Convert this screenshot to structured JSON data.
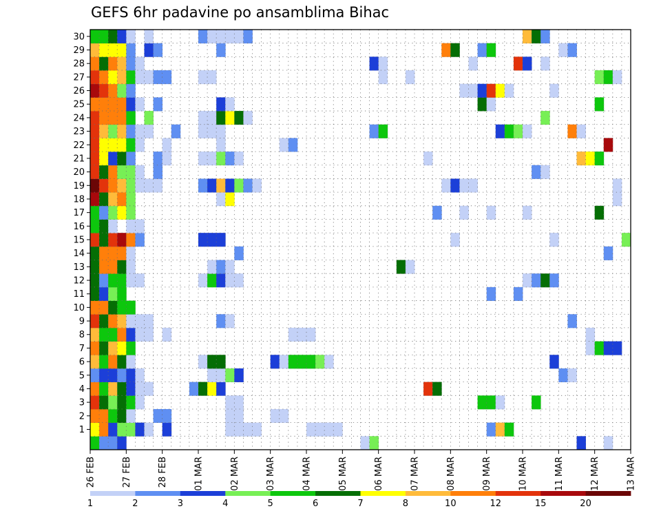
{
  "page": {
    "title": "GEFS 6hr padavine po ansamblima Bihac"
  },
  "chart_data": {
    "type": "heatmap",
    "title": "GEFS 6hr padavine po ansamblima Bihac",
    "xlabel": "",
    "ylabel": "",
    "x_tick_labels": [
      "26 FEB",
      "27 FEB",
      "28 FEB",
      "01 MAR",
      "02 MAR",
      "03 MAR",
      "04 MAR",
      "05 MAR",
      "06 MAR",
      "07 MAR",
      "08 MAR",
      "09 MAR",
      "10 MAR",
      "11 MAR",
      "12 MAR",
      "13 MAR"
    ],
    "y_tick_labels": [
      "1",
      "2",
      "3",
      "4",
      "5",
      "6",
      "7",
      "8",
      "9",
      "10",
      "11",
      "12",
      "13",
      "14",
      "15",
      "16",
      "17",
      "18",
      "19",
      "20",
      "21",
      "22",
      "23",
      "24",
      "25",
      "26",
      "27",
      "28",
      "29",
      "30"
    ],
    "n_steps": 60,
    "n_members": 31,
    "grid": "dotted",
    "colorbar": {
      "levels": [
        "1",
        "2",
        "3",
        "4",
        "5",
        "6",
        "7",
        "8",
        "10",
        "12",
        "15",
        "20"
      ],
      "colors": [
        "#c3d1f7",
        "#5f8ff2",
        "#1c3fd8",
        "#77ef55",
        "#0dc70d",
        "#056e05",
        "#ffff00",
        "#ffbb3a",
        "#ff7f0a",
        "#e3330b",
        "#a8090c",
        "#6b0606"
      ]
    },
    "cells": [
      [
        0,
        0,
        5
      ],
      [
        1,
        0,
        2
      ],
      [
        2,
        0,
        2
      ],
      [
        3,
        0,
        3
      ],
      [
        30,
        0,
        1
      ],
      [
        31,
        0,
        4
      ],
      [
        54,
        0,
        3
      ],
      [
        57,
        0,
        1
      ],
      [
        0,
        1,
        7
      ],
      [
        1,
        1,
        9
      ],
      [
        2,
        1,
        3
      ],
      [
        3,
        1,
        4
      ],
      [
        4,
        1,
        4
      ],
      [
        5,
        1,
        3
      ],
      [
        6,
        1,
        1
      ],
      [
        8,
        1,
        3
      ],
      [
        15,
        1,
        1
      ],
      [
        16,
        1,
        1
      ],
      [
        17,
        1,
        1
      ],
      [
        18,
        1,
        1
      ],
      [
        24,
        1,
        1
      ],
      [
        25,
        1,
        1
      ],
      [
        26,
        1,
        1
      ],
      [
        27,
        1,
        1
      ],
      [
        44,
        1,
        2
      ],
      [
        45,
        1,
        8
      ],
      [
        46,
        1,
        5
      ],
      [
        0,
        2,
        9
      ],
      [
        1,
        2,
        9
      ],
      [
        2,
        2,
        5
      ],
      [
        3,
        2,
        6
      ],
      [
        4,
        2,
        1
      ],
      [
        7,
        2,
        2
      ],
      [
        8,
        2,
        2
      ],
      [
        15,
        2,
        1
      ],
      [
        16,
        2,
        1
      ],
      [
        20,
        2,
        1
      ],
      [
        21,
        2,
        1
      ],
      [
        0,
        3,
        10
      ],
      [
        1,
        3,
        6
      ],
      [
        2,
        3,
        4
      ],
      [
        3,
        3,
        6
      ],
      [
        4,
        3,
        5
      ],
      [
        5,
        3,
        1
      ],
      [
        15,
        3,
        1
      ],
      [
        16,
        3,
        1
      ],
      [
        43,
        3,
        5
      ],
      [
        44,
        3,
        5
      ],
      [
        45,
        3,
        1
      ],
      [
        49,
        3,
        5
      ],
      [
        0,
        4,
        9
      ],
      [
        1,
        4,
        5
      ],
      [
        2,
        4,
        8
      ],
      [
        3,
        4,
        6
      ],
      [
        4,
        4,
        3
      ],
      [
        5,
        4,
        1
      ],
      [
        6,
        4,
        1
      ],
      [
        11,
        4,
        2
      ],
      [
        12,
        4,
        6
      ],
      [
        13,
        4,
        7
      ],
      [
        14,
        4,
        3
      ],
      [
        37,
        4,
        10
      ],
      [
        38,
        4,
        6
      ],
      [
        0,
        5,
        2
      ],
      [
        1,
        5,
        3
      ],
      [
        2,
        5,
        3
      ],
      [
        3,
        5,
        2
      ],
      [
        4,
        5,
        3
      ],
      [
        5,
        5,
        1
      ],
      [
        13,
        5,
        1
      ],
      [
        14,
        5,
        1
      ],
      [
        15,
        5,
        4
      ],
      [
        16,
        5,
        3
      ],
      [
        52,
        5,
        2
      ],
      [
        53,
        5,
        1
      ],
      [
        0,
        6,
        8
      ],
      [
        1,
        6,
        5
      ],
      [
        2,
        6,
        9
      ],
      [
        3,
        6,
        6
      ],
      [
        4,
        6,
        1
      ],
      [
        12,
        6,
        1
      ],
      [
        13,
        6,
        6
      ],
      [
        14,
        6,
        6
      ],
      [
        20,
        6,
        3
      ],
      [
        21,
        6,
        1
      ],
      [
        22,
        6,
        5
      ],
      [
        23,
        6,
        5
      ],
      [
        24,
        6,
        5
      ],
      [
        25,
        6,
        4
      ],
      [
        26,
        6,
        1
      ],
      [
        51,
        6,
        3
      ],
      [
        0,
        7,
        9
      ],
      [
        1,
        7,
        6
      ],
      [
        2,
        7,
        8
      ],
      [
        3,
        7,
        7
      ],
      [
        4,
        7,
        5
      ],
      [
        55,
        7,
        1
      ],
      [
        56,
        7,
        5
      ],
      [
        57,
        7,
        3
      ],
      [
        58,
        7,
        3
      ],
      [
        0,
        8,
        8
      ],
      [
        1,
        8,
        5
      ],
      [
        2,
        8,
        5
      ],
      [
        3,
        8,
        9
      ],
      [
        4,
        8,
        3
      ],
      [
        5,
        8,
        1
      ],
      [
        6,
        8,
        1
      ],
      [
        8,
        8,
        1
      ],
      [
        22,
        8,
        1
      ],
      [
        23,
        8,
        1
      ],
      [
        24,
        8,
        1
      ],
      [
        55,
        8,
        1
      ],
      [
        0,
        9,
        10
      ],
      [
        1,
        9,
        6
      ],
      [
        2,
        9,
        9
      ],
      [
        3,
        9,
        8
      ],
      [
        4,
        9,
        1
      ],
      [
        5,
        9,
        1
      ],
      [
        6,
        9,
        1
      ],
      [
        14,
        9,
        2
      ],
      [
        15,
        9,
        1
      ],
      [
        53,
        9,
        2
      ],
      [
        0,
        10,
        9
      ],
      [
        1,
        10,
        9
      ],
      [
        2,
        10,
        6
      ],
      [
        3,
        10,
        5
      ],
      [
        4,
        10,
        5
      ],
      [
        0,
        11,
        6
      ],
      [
        1,
        11,
        3
      ],
      [
        2,
        11,
        4
      ],
      [
        3,
        11,
        5
      ],
      [
        44,
        11,
        2
      ],
      [
        47,
        11,
        2
      ],
      [
        0,
        12,
        6
      ],
      [
        1,
        12,
        2
      ],
      [
        2,
        12,
        5
      ],
      [
        3,
        12,
        5
      ],
      [
        4,
        12,
        1
      ],
      [
        5,
        12,
        1
      ],
      [
        12,
        12,
        1
      ],
      [
        13,
        12,
        5
      ],
      [
        14,
        12,
        3
      ],
      [
        15,
        12,
        1
      ],
      [
        16,
        12,
        1
      ],
      [
        48,
        12,
        1
      ],
      [
        49,
        12,
        2
      ],
      [
        50,
        12,
        6
      ],
      [
        51,
        12,
        2
      ],
      [
        0,
        13,
        6
      ],
      [
        1,
        13,
        9
      ],
      [
        2,
        13,
        9
      ],
      [
        3,
        13,
        6
      ],
      [
        4,
        13,
        1
      ],
      [
        13,
        13,
        1
      ],
      [
        14,
        13,
        2
      ],
      [
        15,
        13,
        1
      ],
      [
        34,
        13,
        6
      ],
      [
        35,
        13,
        1
      ],
      [
        0,
        14,
        6
      ],
      [
        1,
        14,
        9
      ],
      [
        2,
        14,
        9
      ],
      [
        3,
        14,
        9
      ],
      [
        4,
        14,
        1
      ],
      [
        16,
        14,
        2
      ],
      [
        57,
        14,
        2
      ],
      [
        0,
        15,
        10
      ],
      [
        1,
        15,
        6
      ],
      [
        2,
        15,
        10
      ],
      [
        3,
        15,
        11
      ],
      [
        4,
        15,
        9
      ],
      [
        5,
        15,
        2
      ],
      [
        12,
        15,
        3
      ],
      [
        13,
        15,
        3
      ],
      [
        14,
        15,
        3
      ],
      [
        40,
        15,
        1
      ],
      [
        51,
        15,
        1
      ],
      [
        59,
        15,
        4
      ],
      [
        0,
        16,
        5
      ],
      [
        1,
        16,
        6
      ],
      [
        2,
        16,
        1
      ],
      [
        4,
        16,
        1
      ],
      [
        5,
        16,
        1
      ],
      [
        0,
        17,
        5
      ],
      [
        1,
        17,
        2
      ],
      [
        2,
        17,
        4
      ],
      [
        3,
        17,
        7
      ],
      [
        4,
        17,
        4
      ],
      [
        38,
        17,
        2
      ],
      [
        41,
        17,
        1
      ],
      [
        44,
        17,
        1
      ],
      [
        48,
        17,
        1
      ],
      [
        56,
        17,
        6
      ],
      [
        0,
        18,
        11
      ],
      [
        1,
        18,
        6
      ],
      [
        2,
        18,
        8
      ],
      [
        3,
        18,
        9
      ],
      [
        4,
        18,
        4
      ],
      [
        14,
        18,
        1
      ],
      [
        15,
        18,
        7
      ],
      [
        58,
        18,
        1
      ],
      [
        0,
        19,
        12
      ],
      [
        1,
        19,
        10
      ],
      [
        2,
        19,
        9
      ],
      [
        3,
        19,
        8
      ],
      [
        4,
        19,
        4
      ],
      [
        5,
        19,
        1
      ],
      [
        6,
        19,
        1
      ],
      [
        7,
        19,
        1
      ],
      [
        12,
        19,
        2
      ],
      [
        13,
        19,
        3
      ],
      [
        14,
        19,
        8
      ],
      [
        15,
        19,
        3
      ],
      [
        16,
        19,
        4
      ],
      [
        17,
        19,
        2
      ],
      [
        18,
        19,
        1
      ],
      [
        39,
        19,
        1
      ],
      [
        40,
        19,
        3
      ],
      [
        41,
        19,
        1
      ],
      [
        42,
        19,
        1
      ],
      [
        58,
        19,
        1
      ],
      [
        0,
        20,
        10
      ],
      [
        1,
        20,
        6
      ],
      [
        2,
        20,
        9
      ],
      [
        3,
        20,
        4
      ],
      [
        4,
        20,
        4
      ],
      [
        5,
        20,
        1
      ],
      [
        7,
        20,
        2
      ],
      [
        49,
        20,
        2
      ],
      [
        50,
        20,
        1
      ],
      [
        0,
        21,
        10
      ],
      [
        1,
        21,
        7
      ],
      [
        2,
        21,
        3
      ],
      [
        3,
        21,
        6
      ],
      [
        4,
        21,
        2
      ],
      [
        7,
        21,
        2
      ],
      [
        8,
        21,
        1
      ],
      [
        12,
        21,
        1
      ],
      [
        13,
        21,
        1
      ],
      [
        14,
        21,
        4
      ],
      [
        15,
        21,
        2
      ],
      [
        16,
        21,
        1
      ],
      [
        37,
        21,
        1
      ],
      [
        54,
        21,
        8
      ],
      [
        55,
        21,
        7
      ],
      [
        56,
        21,
        5
      ],
      [
        0,
        22,
        10
      ],
      [
        1,
        22,
        7
      ],
      [
        2,
        22,
        7
      ],
      [
        3,
        22,
        7
      ],
      [
        4,
        22,
        5
      ],
      [
        5,
        22,
        1
      ],
      [
        8,
        22,
        1
      ],
      [
        14,
        22,
        1
      ],
      [
        21,
        22,
        1
      ],
      [
        22,
        22,
        2
      ],
      [
        57,
        22,
        11
      ],
      [
        0,
        23,
        10
      ],
      [
        1,
        23,
        8
      ],
      [
        2,
        23,
        4
      ],
      [
        3,
        23,
        8
      ],
      [
        4,
        23,
        2
      ],
      [
        5,
        23,
        1
      ],
      [
        6,
        23,
        1
      ],
      [
        9,
        23,
        2
      ],
      [
        12,
        23,
        1
      ],
      [
        13,
        23,
        1
      ],
      [
        14,
        23,
        1
      ],
      [
        31,
        23,
        2
      ],
      [
        32,
        23,
        5
      ],
      [
        45,
        23,
        3
      ],
      [
        46,
        23,
        5
      ],
      [
        47,
        23,
        4
      ],
      [
        48,
        23,
        1
      ],
      [
        53,
        23,
        9
      ],
      [
        54,
        23,
        1
      ],
      [
        0,
        24,
        10
      ],
      [
        1,
        24,
        9
      ],
      [
        2,
        24,
        9
      ],
      [
        3,
        24,
        9
      ],
      [
        4,
        24,
        5
      ],
      [
        6,
        24,
        4
      ],
      [
        12,
        24,
        1
      ],
      [
        13,
        24,
        1
      ],
      [
        14,
        24,
        6
      ],
      [
        15,
        24,
        7
      ],
      [
        16,
        24,
        6
      ],
      [
        17,
        24,
        1
      ],
      [
        50,
        24,
        4
      ],
      [
        0,
        25,
        9
      ],
      [
        1,
        25,
        9
      ],
      [
        2,
        25,
        9
      ],
      [
        3,
        25,
        9
      ],
      [
        4,
        25,
        3
      ],
      [
        5,
        25,
        1
      ],
      [
        7,
        25,
        2
      ],
      [
        14,
        25,
        3
      ],
      [
        15,
        25,
        1
      ],
      [
        43,
        25,
        6
      ],
      [
        44,
        25,
        1
      ],
      [
        56,
        25,
        5
      ],
      [
        0,
        26,
        11
      ],
      [
        1,
        26,
        10
      ],
      [
        2,
        26,
        9
      ],
      [
        3,
        26,
        4
      ],
      [
        4,
        26,
        2
      ],
      [
        41,
        26,
        1
      ],
      [
        42,
        26,
        1
      ],
      [
        43,
        26,
        3
      ],
      [
        44,
        26,
        10
      ],
      [
        45,
        26,
        7
      ],
      [
        46,
        26,
        1
      ],
      [
        51,
        26,
        1
      ],
      [
        0,
        27,
        10
      ],
      [
        1,
        27,
        9
      ],
      [
        2,
        27,
        7
      ],
      [
        3,
        27,
        8
      ],
      [
        4,
        27,
        5
      ],
      [
        5,
        27,
        1
      ],
      [
        6,
        27,
        1
      ],
      [
        7,
        27,
        2
      ],
      [
        8,
        27,
        2
      ],
      [
        12,
        27,
        1
      ],
      [
        13,
        27,
        1
      ],
      [
        32,
        27,
        1
      ],
      [
        35,
        27,
        1
      ],
      [
        56,
        27,
        4
      ],
      [
        57,
        27,
        5
      ],
      [
        58,
        27,
        1
      ],
      [
        0,
        28,
        9
      ],
      [
        1,
        28,
        6
      ],
      [
        2,
        28,
        9
      ],
      [
        3,
        28,
        8
      ],
      [
        4,
        28,
        2
      ],
      [
        5,
        28,
        1
      ],
      [
        31,
        28,
        3
      ],
      [
        32,
        28,
        1
      ],
      [
        42,
        28,
        1
      ],
      [
        47,
        28,
        10
      ],
      [
        48,
        28,
        3
      ],
      [
        50,
        28,
        1
      ],
      [
        0,
        29,
        8
      ],
      [
        1,
        29,
        7
      ],
      [
        2,
        29,
        7
      ],
      [
        3,
        29,
        7
      ],
      [
        4,
        29,
        2
      ],
      [
        6,
        29,
        3
      ],
      [
        7,
        29,
        2
      ],
      [
        14,
        29,
        2
      ],
      [
        39,
        29,
        9
      ],
      [
        40,
        29,
        6
      ],
      [
        43,
        29,
        2
      ],
      [
        44,
        29,
        5
      ],
      [
        52,
        29,
        1
      ],
      [
        53,
        29,
        2
      ],
      [
        0,
        30,
        5
      ],
      [
        1,
        30,
        5
      ],
      [
        2,
        30,
        6
      ],
      [
        3,
        30,
        3
      ],
      [
        4,
        30,
        1
      ],
      [
        6,
        30,
        1
      ],
      [
        12,
        30,
        2
      ],
      [
        13,
        30,
        1
      ],
      [
        14,
        30,
        1
      ],
      [
        15,
        30,
        1
      ],
      [
        16,
        30,
        1
      ],
      [
        17,
        30,
        2
      ],
      [
        48,
        30,
        8
      ],
      [
        49,
        30,
        6
      ],
      [
        50,
        30,
        2
      ]
    ]
  }
}
